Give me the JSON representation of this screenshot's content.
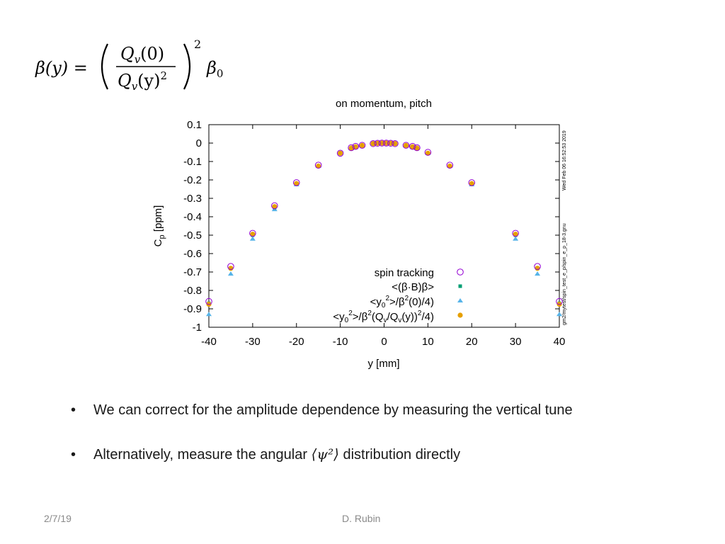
{
  "formula": {
    "lhs": "β(y) =",
    "numerator": "Q",
    "numerator_sub": "v",
    "numerator_arg": "(0)",
    "denominator": "Q",
    "denominator_sub": "v",
    "denominator_arg": "(y)",
    "denominator_exp": "2",
    "outer_exp": "2",
    "rhs": "β",
    "rhs_sub": "0"
  },
  "bullets": [
    {
      "text": "We can correct for the amplitude dependence by measuring the vertical tune"
    },
    {
      "text_before": "Alternatively, measure the angular ",
      "math": "⟨ψ²⟩",
      "text_after": " distribution directly"
    }
  ],
  "footer": {
    "date": "2/7/19",
    "author": "D. Rubin"
  },
  "chart_data": {
    "type": "scatter",
    "title": "on momentum, pitch",
    "xlabel": "y [mm]",
    "ylabel": "C",
    "ylabel_sub": "p",
    "ylabel_unit": " [ppm]",
    "xlim": [
      -40,
      40
    ],
    "ylim": [
      -1,
      0.1
    ],
    "xticks": [
      "-40",
      "-30",
      "-20",
      "-10",
      "0",
      "10",
      "20",
      "30",
      "40"
    ],
    "yticks": [
      "0.1",
      "0",
      "-0.1",
      "-0.2",
      "-0.3",
      "-0.4",
      "-0.5",
      "-0.6",
      "-0.7",
      "-0.8",
      "-0.9",
      "-1"
    ],
    "side_text_1": "Wed Feb 06 16:52:53 2019",
    "side_text_2": "gm2/mytest/spin_test_e_p/spin_e_p_18-3.gnu",
    "legend_position": "bottom-right",
    "x": [
      -40,
      -35,
      -30,
      -25,
      -20,
      -15,
      -10,
      -7.5,
      -6.5,
      -5,
      -2.5,
      -1.5,
      -0.5,
      0.5,
      1.5,
      2.5,
      5,
      6.5,
      7.5,
      10,
      15,
      20,
      30,
      35,
      40
    ],
    "series": [
      {
        "name": "spin tracking",
        "marker": "open-circle",
        "color": "#9400d3",
        "values": [
          -0.86,
          -0.67,
          -0.49,
          -0.34,
          -0.215,
          -0.12,
          -0.055,
          -0.025,
          -0.018,
          -0.012,
          -0.003,
          -0.001,
          0,
          0,
          -0.001,
          -0.003,
          -0.012,
          -0.018,
          -0.025,
          -0.05,
          -0.12,
          -0.215,
          -0.49,
          -0.67,
          -0.86
        ]
      },
      {
        "name": "<(β·B)β>",
        "label_text_1": "<(β·B)β>",
        "marker": "square",
        "color": "#009e73",
        "values": [
          -0.87,
          -0.68,
          -0.5,
          -0.35,
          -0.22,
          -0.125,
          -0.055,
          -0.027,
          -0.02,
          -0.013,
          -0.003,
          -0.001,
          0,
          0,
          -0.001,
          -0.003,
          -0.013,
          -0.02,
          -0.027,
          -0.055,
          -0.125,
          -0.22,
          -0.5,
          -0.68,
          -0.87
        ]
      },
      {
        "name": "<y02>/β2(0)/4)",
        "label_a": "<y",
        "label_sub": "0",
        "label_sup": "2",
        "label_b": ">/β",
        "label_sup2": "2",
        "label_c": "(0)/4)",
        "marker": "triangle",
        "color": "#56b4e9",
        "values": [
          -0.93,
          -0.71,
          -0.52,
          -0.36,
          -0.225,
          -0.125,
          -0.055,
          -0.028,
          -0.02,
          -0.013,
          -0.003,
          -0.001,
          0,
          0,
          -0.001,
          -0.003,
          -0.013,
          -0.02,
          -0.028,
          -0.055,
          -0.125,
          -0.225,
          -0.52,
          -0.71,
          -0.93
        ]
      },
      {
        "name": "<y02>/β2(Qv/Qv(y))2/4)",
        "label_a": "<y",
        "label_sub": "0",
        "label_sup": "2",
        "label_b": ">/β",
        "label_sup2": "2",
        "label_c": "(Q",
        "label_sub2": "v",
        "label_d": "/Q",
        "label_sub3": "v",
        "label_e": "(y))",
        "label_sup3": "2",
        "label_f": "/4)",
        "marker": "filled-circle",
        "color": "#e69f00",
        "values": [
          -0.875,
          -0.68,
          -0.495,
          -0.345,
          -0.22,
          -0.125,
          -0.055,
          -0.027,
          -0.02,
          -0.013,
          -0.003,
          -0.001,
          0,
          0,
          -0.001,
          -0.003,
          -0.013,
          -0.02,
          -0.027,
          -0.055,
          -0.125,
          -0.22,
          -0.495,
          -0.68,
          -0.875
        ]
      }
    ]
  }
}
